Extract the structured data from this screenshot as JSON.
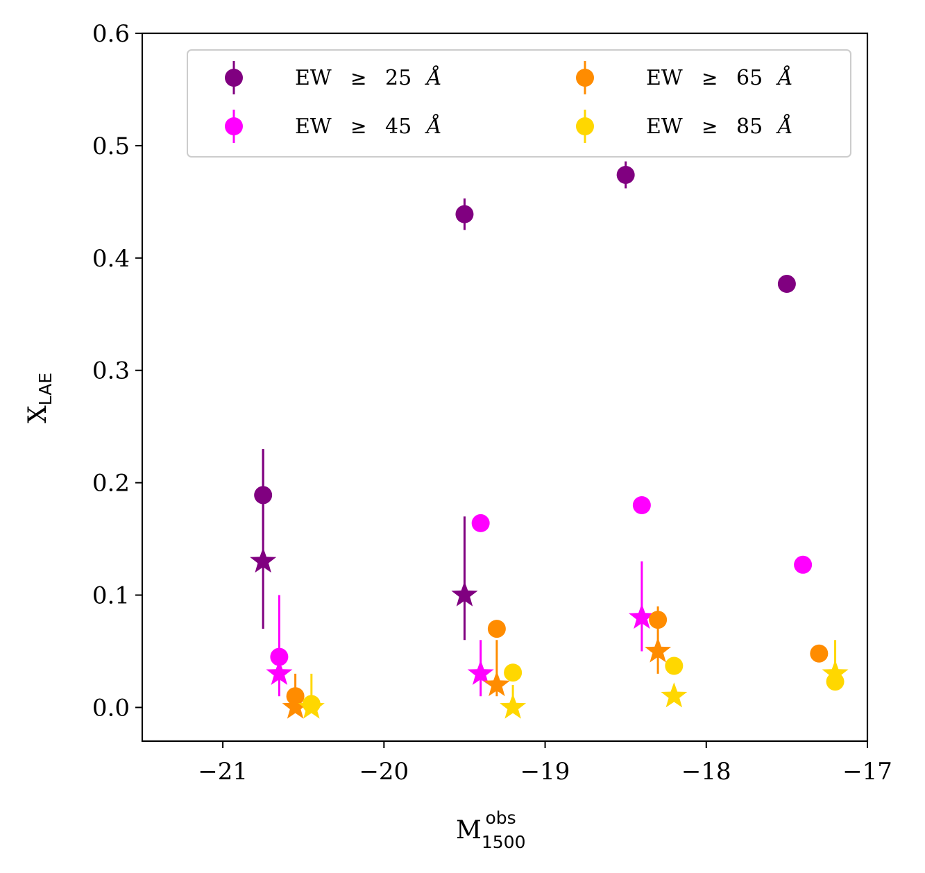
{
  "chart_data": {
    "type": "scatter",
    "xlabel": {
      "main": "M",
      "sub": "1500",
      "sup": "obs"
    },
    "ylabel": {
      "main": "X",
      "sub": "LAE"
    },
    "xlim": [
      -21.5,
      -17
    ],
    "ylim": [
      -0.03,
      0.6
    ],
    "xticks": [
      -21,
      -20,
      -19,
      -18,
      -17
    ],
    "xtick_labels": [
      "−21",
      "−20",
      "−19",
      "−18",
      "−17"
    ],
    "yticks": [
      0.0,
      0.1,
      0.2,
      0.3,
      0.4,
      0.5,
      0.6
    ],
    "ytick_labels": [
      "0.0",
      "0.1",
      "0.2",
      "0.3",
      "0.4",
      "0.5",
      "0.6"
    ],
    "grid": false,
    "legend_position": "top",
    "series": [
      {
        "name": "EW ≥ 25 Å",
        "legend": {
          "prefix": "EW",
          "symbol": "≥",
          "value": "25",
          "unit": "Å"
        },
        "color": "#800080",
        "circles": [
          {
            "x": -20.75,
            "y": 0.189,
            "err": [
              0.04,
              0.04
            ]
          },
          {
            "x": -19.5,
            "y": 0.439,
            "err": [
              0.014,
              0.014
            ]
          },
          {
            "x": -18.5,
            "y": 0.474,
            "err": [
              0.012,
              0.012
            ]
          },
          {
            "x": -17.5,
            "y": 0.377,
            "err": [
              0.0,
              0.0
            ]
          }
        ],
        "stars": [
          {
            "x": -20.75,
            "y": 0.13,
            "err": [
              0.06,
              0.1
            ]
          },
          {
            "x": -19.5,
            "y": 0.1,
            "err": [
              0.04,
              0.07
            ]
          }
        ]
      },
      {
        "name": "EW ≥ 45 Å",
        "legend": {
          "prefix": "EW",
          "symbol": "≥",
          "value": "45",
          "unit": "Å"
        },
        "color": "#ff00ff",
        "circles": [
          {
            "x": -20.65,
            "y": 0.045,
            "err": [
              0.0,
              0.0
            ]
          },
          {
            "x": -19.4,
            "y": 0.164,
            "err": [
              0.0,
              0.0
            ]
          },
          {
            "x": -18.4,
            "y": 0.18,
            "err": [
              0.0,
              0.0
            ]
          },
          {
            "x": -17.4,
            "y": 0.127,
            "err": [
              0.0,
              0.0
            ]
          }
        ],
        "stars": [
          {
            "x": -20.65,
            "y": 0.03,
            "err": [
              0.02,
              0.07
            ]
          },
          {
            "x": -19.4,
            "y": 0.03,
            "err": [
              0.02,
              0.03
            ]
          },
          {
            "x": -18.4,
            "y": 0.08,
            "err": [
              0.03,
              0.05
            ]
          }
        ]
      },
      {
        "name": "EW ≥ 65 Å",
        "legend": {
          "prefix": "EW",
          "symbol": "≥",
          "value": "65",
          "unit": "Å"
        },
        "color": "#ff8c00",
        "circles": [
          {
            "x": -20.55,
            "y": 0.01,
            "err": [
              0.0,
              0.0
            ]
          },
          {
            "x": -19.3,
            "y": 0.07,
            "err": [
              0.0,
              0.0
            ]
          },
          {
            "x": -18.3,
            "y": 0.078,
            "err": [
              0.0,
              0.0
            ]
          },
          {
            "x": -17.3,
            "y": 0.048,
            "err": [
              0.0,
              0.0
            ]
          }
        ],
        "stars": [
          {
            "x": -20.55,
            "y": 0.0,
            "err": [
              0.0,
              0.03
            ]
          },
          {
            "x": -19.3,
            "y": 0.02,
            "err": [
              0.01,
              0.04
            ]
          },
          {
            "x": -18.3,
            "y": 0.05,
            "err": [
              0.02,
              0.04
            ]
          }
        ]
      },
      {
        "name": "EW ≥ 85 Å",
        "legend": {
          "prefix": "EW",
          "symbol": "≥",
          "value": "85",
          "unit": "Å"
        },
        "color": "#ffd700",
        "circles": [
          {
            "x": -20.45,
            "y": 0.003,
            "err": [
              0.0,
              0.0
            ]
          },
          {
            "x": -19.2,
            "y": 0.031,
            "err": [
              0.0,
              0.0
            ]
          },
          {
            "x": -18.2,
            "y": 0.037,
            "err": [
              0.0,
              0.0
            ]
          },
          {
            "x": -17.2,
            "y": 0.023,
            "err": [
              0.0,
              0.0
            ]
          }
        ],
        "stars": [
          {
            "x": -20.45,
            "y": 0.0,
            "err": [
              0.0,
              0.03
            ]
          },
          {
            "x": -19.2,
            "y": 0.0,
            "err": [
              0.0,
              0.02
            ]
          },
          {
            "x": -18.2,
            "y": 0.01,
            "err": [
              0.0,
              0.0
            ]
          },
          {
            "x": -17.2,
            "y": 0.03,
            "err": [
              0.0,
              0.03
            ]
          }
        ]
      }
    ]
  }
}
